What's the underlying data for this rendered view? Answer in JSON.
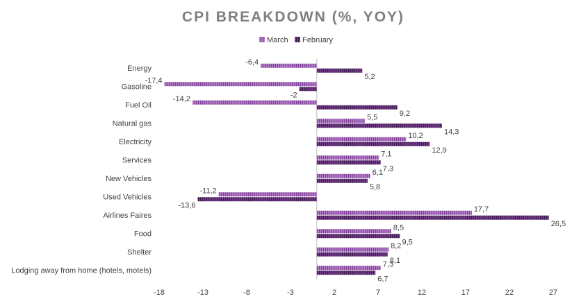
{
  "chart_data": {
    "type": "bar",
    "orientation": "horizontal",
    "title": "CPI BREAKDOWN (%, YOY)",
    "categories": [
      "Energy",
      "Gasoline",
      "Fuel Oil",
      "Natural gas",
      "Electricity",
      "Services",
      "New Vehicles",
      "Used Vehicles",
      "Airlines Faires",
      "Food",
      "Shelter",
      "Lodging away from home (hotels, motels)"
    ],
    "series": [
      {
        "name": "March",
        "color": "#9b4fb3",
        "values": [
          -6.4,
          -17.4,
          -14.2,
          5.5,
          10.2,
          7.1,
          6.1,
          -11.2,
          17.7,
          8.5,
          8.2,
          7.3
        ],
        "labels": [
          "-6,4",
          "-17,4",
          "-14,2",
          "5,5",
          "10,2",
          "7,1",
          "6,1",
          "-11,2",
          "17,7",
          "8,5",
          "8,2",
          "7,3"
        ]
      },
      {
        "name": "February",
        "color": "#5b2a6e",
        "values": [
          5.2,
          -2,
          9.2,
          14.3,
          12.9,
          7.3,
          5.8,
          -13.6,
          26.5,
          9.5,
          8.1,
          6.7
        ],
        "labels": [
          "5,2",
          "-2",
          "9,2",
          "14,3",
          "12,9",
          "7,3",
          "5,8",
          "-13,6",
          "26,5",
          "9,5",
          "8,1",
          "6,7"
        ]
      }
    ],
    "xticks": [
      -18,
      -13,
      -8,
      -3,
      2,
      7,
      12,
      17,
      22,
      27
    ],
    "xlim": [
      -18,
      27
    ],
    "grid": false,
    "legend_position": "top-center"
  }
}
